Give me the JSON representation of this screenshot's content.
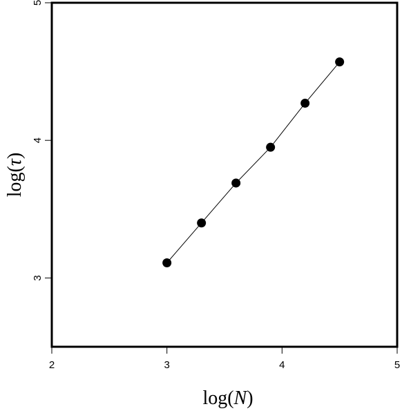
{
  "chart_data": {
    "type": "scatter",
    "title": "",
    "xlabel": {
      "prefix": "log(",
      "var": "N",
      "suffix": ")"
    },
    "ylabel": {
      "prefix": "log(",
      "var": "τ",
      "suffix": ")"
    },
    "xlim": [
      2,
      5
    ],
    "ylim": [
      2.5,
      5
    ],
    "xticks": [
      2,
      3,
      4,
      5
    ],
    "yticks": [
      3,
      4,
      5
    ],
    "xtick_labels": [
      "2",
      "3",
      "4",
      "5"
    ],
    "ytick_labels": [
      "3",
      "4",
      "5"
    ],
    "grid": false,
    "legend": "none",
    "series": [
      {
        "marker": "filled-circle",
        "line": "solid",
        "color": "#000000",
        "x": [
          3.0,
          3.3,
          3.6,
          3.9,
          4.2,
          4.5
        ],
        "y": [
          3.11,
          3.4,
          3.69,
          3.95,
          4.27,
          4.57
        ]
      }
    ]
  }
}
